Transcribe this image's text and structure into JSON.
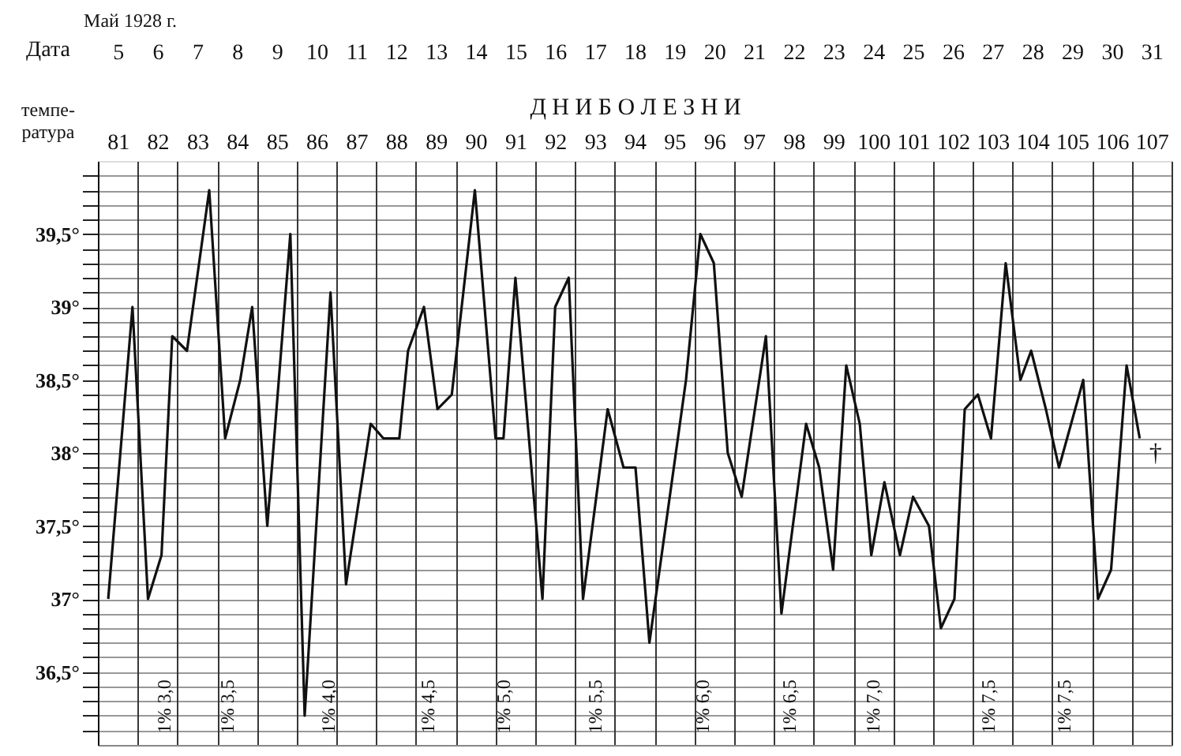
{
  "chart_data": {
    "type": "line",
    "title": "Май 1928 г.",
    "x2label": "Дата",
    "xlabel": "Д Н И  Б О Л Е З Н И",
    "ylabel": "темпе-ратура",
    "xlim": [
      80.5,
      107.5
    ],
    "x2lim": [
      4.5,
      31.5
    ],
    "ylim": [
      36,
      40
    ],
    "grid": true,
    "marker": "none",
    "line_style": "solid",
    "xticks": [
      {
        "value": 80.5,
        "label": null
      },
      {
        "value": 81.5,
        "label": null
      },
      {
        "value": 82.5,
        "label": null
      },
      {
        "value": 83.5,
        "label": null
      },
      {
        "value": 84.5,
        "label": null
      },
      {
        "value": 85.5,
        "label": null
      },
      {
        "value": 86.5,
        "label": null
      },
      {
        "value": 87.5,
        "label": null
      },
      {
        "value": 88.5,
        "label": null
      },
      {
        "value": 89.5,
        "label": null
      },
      {
        "value": 90.5,
        "label": null
      },
      {
        "value": 91.5,
        "label": null
      },
      {
        "value": 92.5,
        "label": null
      },
      {
        "value": 93.5,
        "label": null
      },
      {
        "value": 94.5,
        "label": null
      },
      {
        "value": 95.5,
        "label": null
      },
      {
        "value": 96.5,
        "label": null
      },
      {
        "value": 97.5,
        "label": null
      },
      {
        "value": 98.5,
        "label": null
      },
      {
        "value": 99.5,
        "label": null
      },
      {
        "value": 100.5,
        "label": null
      },
      {
        "value": 101.5,
        "label": null
      },
      {
        "value": 102.5,
        "label": null
      },
      {
        "value": 103.5,
        "label": null
      },
      {
        "value": 104.5,
        "label": null
      },
      {
        "value": 105.5,
        "label": null
      },
      {
        "value": 106.5,
        "label": null
      },
      {
        "value": 107.5,
        "label": null
      },
      81,
      82,
      83,
      84,
      85,
      86,
      87,
      88,
      89,
      90,
      91,
      92,
      93,
      94,
      95,
      96,
      97,
      98,
      99,
      100,
      101,
      102,
      103,
      104,
      105,
      106,
      107
    ],
    "x2ticks": [
      5,
      6,
      7,
      8,
      9,
      10,
      11,
      12,
      13,
      14,
      15,
      16,
      17,
      18,
      19,
      20,
      21,
      22,
      23,
      24,
      25,
      26,
      27,
      28,
      29,
      30,
      31
    ],
    "yticks": [
      {
        "value": 36.1,
        "label": null
      },
      {
        "value": 36.2,
        "label": null
      },
      {
        "value": 36.3,
        "label": null
      },
      {
        "value": 36.4,
        "label": null
      },
      {
        "value": 36.5,
        "label": "36,5°"
      },
      {
        "value": 36.6,
        "label": null
      },
      {
        "value": 36.7,
        "label": null
      },
      {
        "value": 36.8,
        "label": null
      },
      {
        "value": 36.9,
        "label": null
      },
      {
        "value": 37,
        "label": "37°"
      },
      {
        "value": 37.1,
        "label": null
      },
      {
        "value": 37.2,
        "label": null
      },
      {
        "value": 37.3,
        "label": null
      },
      {
        "value": 37.4,
        "label": null
      },
      {
        "value": 37.5,
        "label": "37,5°"
      },
      {
        "value": 37.6,
        "label": null
      },
      {
        "value": 37.7,
        "label": null
      },
      {
        "value": 37.8,
        "label": null
      },
      {
        "value": 37.9,
        "label": null
      },
      {
        "value": 38,
        "label": "38°"
      },
      {
        "value": 38.1,
        "label": null
      },
      {
        "value": 38.2,
        "label": null
      },
      {
        "value": 38.3,
        "label": null
      },
      {
        "value": 38.4,
        "label": null
      },
      {
        "value": 38.5,
        "label": "38,5°"
      },
      {
        "value": 38.6,
        "label": null
      },
      {
        "value": 38.7,
        "label": null
      },
      {
        "value": 38.8,
        "label": null
      },
      {
        "value": 38.9,
        "label": null
      },
      {
        "value": 39,
        "label": "39°"
      },
      {
        "value": 39.1,
        "label": null
      },
      {
        "value": 39.2,
        "label": null
      },
      {
        "value": 39.3,
        "label": null
      },
      {
        "value": 39.4,
        "label": null
      },
      {
        "value": 39.5,
        "label": "39,5°"
      },
      {
        "value": 39.6,
        "label": null
      },
      {
        "value": 39.7,
        "label": null
      },
      {
        "value": 39.8,
        "label": null
      },
      {
        "value": 39.9,
        "label": null
      }
    ],
    "series": [
      {
        "color": "#111111",
        "x": [
          80.76,
          81.37,
          81.76,
          82.1,
          82.37,
          82.74,
          83.3,
          83.7,
          84.08,
          84.38,
          84.76,
          85.34,
          85.7,
          86.35,
          86.74,
          87.36,
          87.68,
          88.08,
          88.3,
          88.7,
          89.04,
          89.4,
          89.98,
          90.5,
          90.7,
          91.0,
          91.68,
          92.0,
          92.34,
          92.7,
          93.32,
          93.72,
          94.02,
          94.37,
          95.29,
          95.65,
          95.99,
          96.34,
          96.69,
          97.3,
          97.69,
          98.31,
          98.64,
          98.99,
          99.32,
          99.66,
          99.95,
          100.28,
          100.67,
          101.0,
          101.4,
          101.7,
          102.04,
          102.3,
          102.63,
          102.96,
          103.33,
          103.7,
          103.97,
          104.34,
          104.67,
          105.28,
          105.65,
          105.98,
          106.37,
          106.7
        ],
        "values": [
          37.0,
          39.0,
          37.0,
          37.3,
          38.8,
          38.7,
          39.8,
          38.1,
          38.5,
          39.0,
          37.5,
          39.5,
          36.2,
          39.1,
          37.1,
          38.2,
          38.1,
          38.1,
          38.7,
          39.0,
          38.3,
          38.4,
          39.8,
          38.1,
          38.1,
          39.2,
          37.0,
          39.0,
          39.2,
          37.0,
          38.3,
          37.9,
          37.9,
          36.7,
          38.5,
          39.5,
          39.3,
          38.0,
          37.7,
          38.8,
          36.9,
          38.2,
          37.9,
          37.2,
          38.6,
          38.2,
          37.3,
          37.8,
          37.3,
          37.7,
          37.5,
          36.8,
          37.0,
          38.3,
          38.4,
          38.1,
          39.3,
          38.5,
          38.7,
          38.3,
          37.9,
          38.5,
          37.0,
          37.2,
          38.6,
          38.1
        ]
      }
    ],
    "annotations": [
      "1% 3,0",
      "1% 3,5",
      "1% 4,0",
      "1% 4,5",
      "1% 5,0",
      "1% 5,5",
      "1% 6,0",
      "1% 6,5",
      "1% 7,0",
      "1% 7,5",
      "1% 7,5",
      "†"
    ]
  }
}
